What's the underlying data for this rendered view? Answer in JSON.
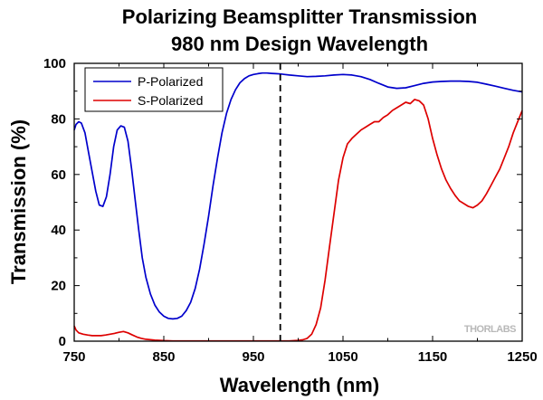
{
  "chart_data": {
    "type": "line",
    "title": "Polarizing Beamsplitter Transmission",
    "subtitle": "980 nm Design Wavelength",
    "xlabel": "Wavelength (nm)",
    "ylabel": "Transmission (%)",
    "xlim": [
      750,
      1250
    ],
    "ylim": [
      0,
      100
    ],
    "xticks": [
      750,
      850,
      950,
      1050,
      1150,
      1250
    ],
    "yticks": [
      0,
      20,
      40,
      60,
      80,
      100
    ],
    "grid": false,
    "legend_position": "top-left",
    "design_wavelength": 980,
    "watermark": "THORLABS",
    "series": [
      {
        "name": "P-Polarized",
        "color": "#0000cc",
        "x": [
          750,
          752,
          755,
          758,
          762,
          766,
          770,
          774,
          778,
          782,
          786,
          790,
          794,
          798,
          802,
          806,
          810,
          814,
          818,
          822,
          826,
          830,
          835,
          840,
          845,
          850,
          855,
          860,
          865,
          870,
          875,
          880,
          885,
          890,
          895,
          900,
          905,
          910,
          915,
          920,
          925,
          930,
          935,
          940,
          945,
          950,
          955,
          960,
          965,
          970,
          975,
          980,
          985,
          990,
          1000,
          1010,
          1020,
          1030,
          1040,
          1050,
          1060,
          1070,
          1080,
          1090,
          1100,
          1110,
          1120,
          1130,
          1140,
          1150,
          1160,
          1170,
          1180,
          1190,
          1200,
          1210,
          1220,
          1230,
          1240,
          1250
        ],
        "y": [
          76,
          78,
          79,
          78.5,
          75,
          68,
          61,
          54,
          49,
          48.5,
          52,
          60,
          70,
          76,
          77.5,
          77,
          72,
          62,
          51,
          40,
          30,
          23,
          17,
          13,
          10.5,
          9,
          8.2,
          8,
          8.2,
          9,
          11,
          14,
          19,
          26,
          35,
          45,
          56,
          66,
          75,
          82,
          87,
          90.5,
          93,
          94.5,
          95.5,
          96,
          96.3,
          96.5,
          96.5,
          96.4,
          96.3,
          96.2,
          96,
          95.8,
          95.5,
          95.2,
          95.3,
          95.5,
          95.8,
          96,
          95.8,
          95.2,
          94.2,
          92.8,
          91.5,
          91,
          91.2,
          92,
          92.8,
          93.3,
          93.5,
          93.6,
          93.6,
          93.5,
          93.2,
          92.5,
          91.8,
          91,
          90.3,
          89.7
        ]
      },
      {
        "name": "S-Polarized",
        "color": "#dd0000",
        "x": [
          750,
          752,
          755,
          760,
          765,
          770,
          775,
          780,
          785,
          790,
          795,
          800,
          805,
          810,
          815,
          820,
          825,
          830,
          840,
          850,
          860,
          870,
          880,
          890,
          900,
          910,
          920,
          930,
          940,
          950,
          960,
          970,
          980,
          990,
          1000,
          1005,
          1010,
          1015,
          1020,
          1025,
          1030,
          1035,
          1040,
          1045,
          1050,
          1055,
          1060,
          1065,
          1070,
          1075,
          1080,
          1085,
          1090,
          1095,
          1100,
          1105,
          1110,
          1115,
          1120,
          1125,
          1130,
          1135,
          1140,
          1145,
          1150,
          1155,
          1160,
          1165,
          1170,
          1175,
          1180,
          1185,
          1190,
          1195,
          1200,
          1205,
          1210,
          1215,
          1220,
          1225,
          1230,
          1235,
          1240,
          1245,
          1250
        ],
        "y": [
          5.5,
          4,
          3,
          2.5,
          2.2,
          2,
          2,
          2,
          2.2,
          2.5,
          2.8,
          3.2,
          3.5,
          3,
          2.2,
          1.5,
          1,
          0.7,
          0.4,
          0.2,
          0.1,
          0.1,
          0.1,
          0.1,
          0.1,
          0.1,
          0.1,
          0.1,
          0.1,
          0.1,
          0.1,
          0.1,
          0.1,
          0.1,
          0.3,
          0.5,
          1,
          2.5,
          6,
          12,
          22,
          34,
          46,
          58,
          66,
          71,
          73,
          74.5,
          76,
          77,
          78,
          79,
          79,
          80.5,
          81.5,
          83,
          84,
          85,
          86,
          85.5,
          87,
          86.5,
          85,
          80,
          73,
          67,
          62,
          58,
          55,
          52.5,
          50.5,
          49.5,
          48.5,
          48,
          49,
          50.5,
          53,
          56,
          59,
          62,
          66,
          70,
          75,
          79,
          83
        ]
      }
    ]
  }
}
